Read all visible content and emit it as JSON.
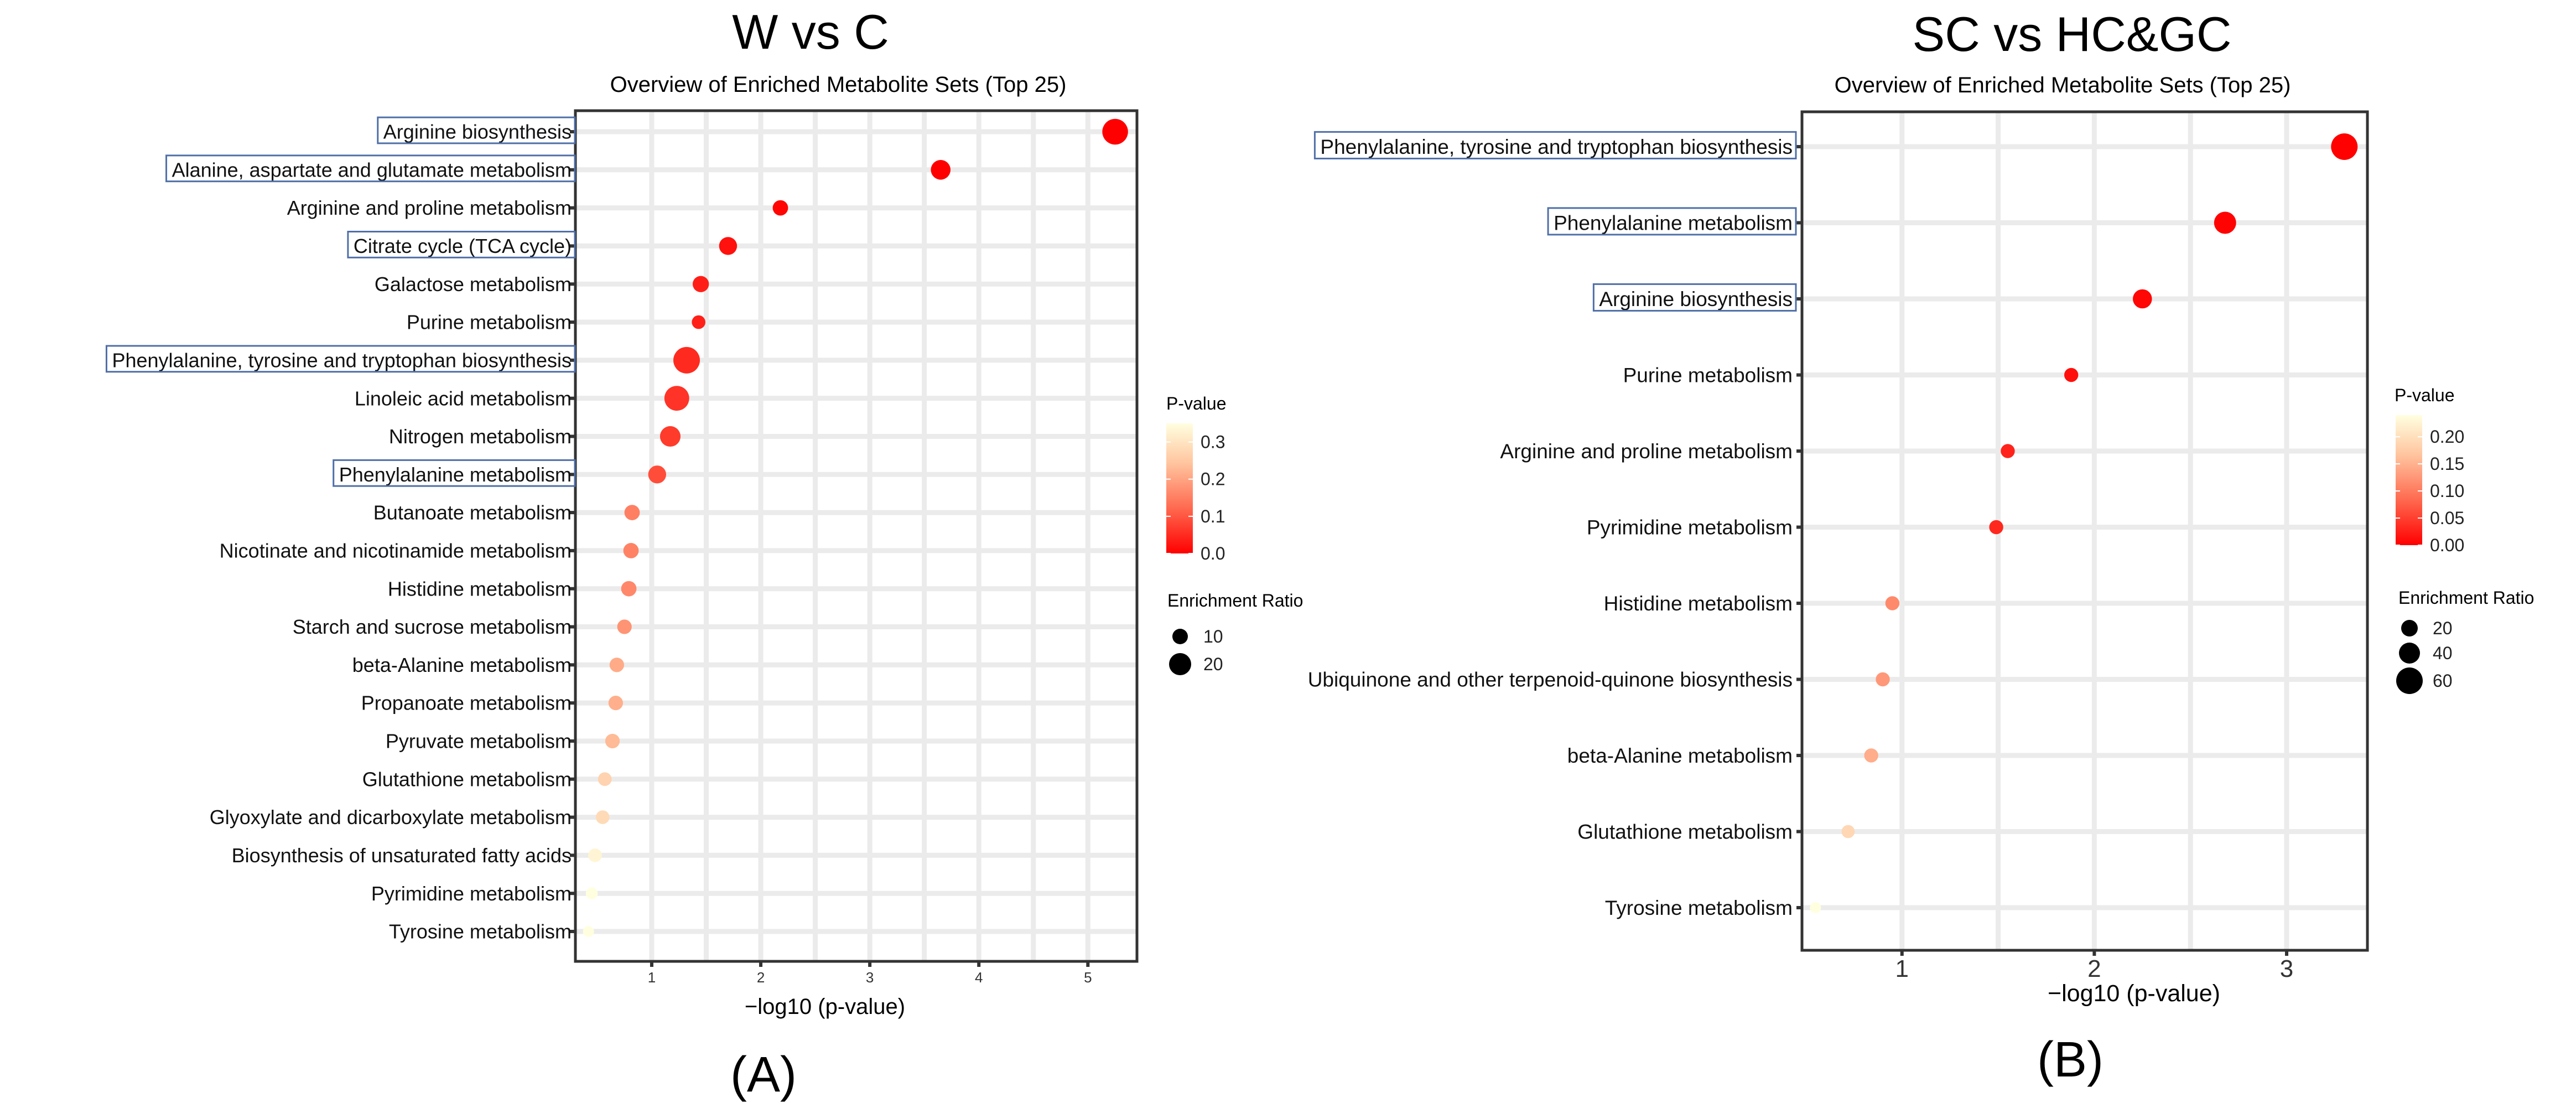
{
  "chart_data": [
    {
      "type": "scatter",
      "main_title": "W vs C",
      "title": "Overview of Enriched Metabolite Sets (Top 25)",
      "xlabel": "−log10 (p-value)",
      "ylabel": "",
      "panel_label": "(A)",
      "xlim": [
        0.3,
        5.45
      ],
      "xticks": [
        1,
        2,
        3,
        4,
        5
      ],
      "grid": true,
      "legend_position": "right",
      "color_legend": {
        "title": "P-value",
        "min": 0.0,
        "max": 0.35,
        "ticks": [
          "0.3",
          "0.2",
          "0.1",
          "0.0"
        ],
        "tick_values": [
          0.3,
          0.2,
          0.1,
          0.0
        ],
        "low_color": "#FF0000",
        "high_color": "#FFFFE0"
      },
      "size_legend": {
        "title": "Enrichment Ratio",
        "labels": [
          "10",
          "20"
        ],
        "values": [
          10,
          20
        ]
      },
      "highlighted": [
        "Arginine biosynthesis",
        "Alanine, aspartate and glutamate metabolism",
        "Citrate cycle (TCA cycle)",
        "Phenylalanine, tyrosine and tryptophan biosynthesis",
        "Phenylalanine metabolism"
      ],
      "points": [
        {
          "label": "Arginine biosynthesis",
          "x": 5.25,
          "p": 6e-06,
          "ratio": 21
        },
        {
          "label": "Alanine, aspartate and glutamate metabolism",
          "x": 3.65,
          "p": 0.0002,
          "ratio": 14
        },
        {
          "label": "Arginine and proline metabolism",
          "x": 2.18,
          "p": 0.007,
          "ratio": 9
        },
        {
          "label": "Citrate cycle (TCA cycle)",
          "x": 1.7,
          "p": 0.02,
          "ratio": 12
        },
        {
          "label": "Galactose metabolism",
          "x": 1.45,
          "p": 0.035,
          "ratio": 10
        },
        {
          "label": "Purine metabolism",
          "x": 1.43,
          "p": 0.037,
          "ratio": 7
        },
        {
          "label": "Phenylalanine, tyrosine and tryptophan biosynthesis",
          "x": 1.32,
          "p": 0.048,
          "ratio": 22
        },
        {
          "label": "Linoleic acid metabolism",
          "x": 1.23,
          "p": 0.059,
          "ratio": 20
        },
        {
          "label": "Nitrogen metabolism",
          "x": 1.17,
          "p": 0.068,
          "ratio": 15
        },
        {
          "label": "Phenylalanine metabolism",
          "x": 1.05,
          "p": 0.089,
          "ratio": 12
        },
        {
          "label": "Butanoate metabolism",
          "x": 0.82,
          "p": 0.151,
          "ratio": 9
        },
        {
          "label": "Nicotinate and nicotinamide metabolism",
          "x": 0.81,
          "p": 0.155,
          "ratio": 9
        },
        {
          "label": "Histidine metabolism",
          "x": 0.79,
          "p": 0.162,
          "ratio": 9
        },
        {
          "label": "Starch and sucrose metabolism",
          "x": 0.75,
          "p": 0.178,
          "ratio": 8
        },
        {
          "label": "beta-Alanine metabolism",
          "x": 0.68,
          "p": 0.209,
          "ratio": 8
        },
        {
          "label": "Propanoate metabolism",
          "x": 0.67,
          "p": 0.214,
          "ratio": 8
        },
        {
          "label": "Pyruvate metabolism",
          "x": 0.64,
          "p": 0.229,
          "ratio": 8
        },
        {
          "label": "Glutathione metabolism",
          "x": 0.57,
          "p": 0.269,
          "ratio": 7
        },
        {
          "label": "Glyoxylate and dicarboxylate metabolism",
          "x": 0.55,
          "p": 0.282,
          "ratio": 7
        },
        {
          "label": "Biosynthesis of unsaturated fatty acids",
          "x": 0.48,
          "p": 0.331,
          "ratio": 7
        },
        {
          "label": "Pyrimidine metabolism",
          "x": 0.45,
          "p": 0.355,
          "ratio": 5
        },
        {
          "label": "Tyrosine metabolism",
          "x": 0.42,
          "p": 0.38,
          "ratio": 4
        }
      ]
    },
    {
      "type": "scatter",
      "main_title": "SC vs HC&GC",
      "title": "Overview of Enriched Metabolite Sets (Top 25)",
      "xlabel": "−log10 (p-value)",
      "ylabel": "",
      "panel_label": "(B)",
      "xlim": [
        0.48,
        3.42
      ],
      "xticks": [
        1,
        2,
        3
      ],
      "grid": true,
      "legend_position": "right",
      "color_legend": {
        "title": "P-value",
        "min": 0.0,
        "max": 0.24,
        "ticks": [
          "0.20",
          "0.15",
          "0.10",
          "0.05",
          "0.00"
        ],
        "tick_values": [
          0.2,
          0.15,
          0.1,
          0.05,
          0.0
        ],
        "low_color": "#FF0000",
        "high_color": "#FFFFE0"
      },
      "size_legend": {
        "title": "Enrichment Ratio",
        "labels": [
          "20",
          "40",
          "60"
        ],
        "values": [
          20,
          40,
          60
        ]
      },
      "highlighted": [
        "Phenylalanine, tyrosine and tryptophan biosynthesis",
        "Phenylalanine metabolism",
        "Arginine biosynthesis"
      ],
      "points": [
        {
          "label": "Phenylalanine, tyrosine and tryptophan biosynthesis",
          "x": 3.3,
          "p": 0.0005,
          "ratio": 60
        },
        {
          "label": "Phenylalanine metabolism",
          "x": 2.68,
          "p": 0.002,
          "ratio": 45
        },
        {
          "label": "Arginine biosynthesis",
          "x": 2.25,
          "p": 0.0056,
          "ratio": 35
        },
        {
          "label": "Purine metabolism",
          "x": 1.88,
          "p": 0.013,
          "ratio": 18
        },
        {
          "label": "Arginine and proline metabolism",
          "x": 1.55,
          "p": 0.028,
          "ratio": 18
        },
        {
          "label": "Pyrimidine metabolism",
          "x": 1.49,
          "p": 0.032,
          "ratio": 18
        },
        {
          "label": "Histidine metabolism",
          "x": 0.95,
          "p": 0.112,
          "ratio": 18
        },
        {
          "label": "Ubiquinone and other terpenoid-quinone biosynthesis",
          "x": 0.9,
          "p": 0.126,
          "ratio": 18
        },
        {
          "label": "beta-Alanine metabolism",
          "x": 0.84,
          "p": 0.145,
          "ratio": 18
        },
        {
          "label": "Glutathione metabolism",
          "x": 0.72,
          "p": 0.19,
          "ratio": 15
        },
        {
          "label": "Tyrosine metabolism",
          "x": 0.55,
          "p": 0.28,
          "ratio": 8
        }
      ]
    }
  ]
}
